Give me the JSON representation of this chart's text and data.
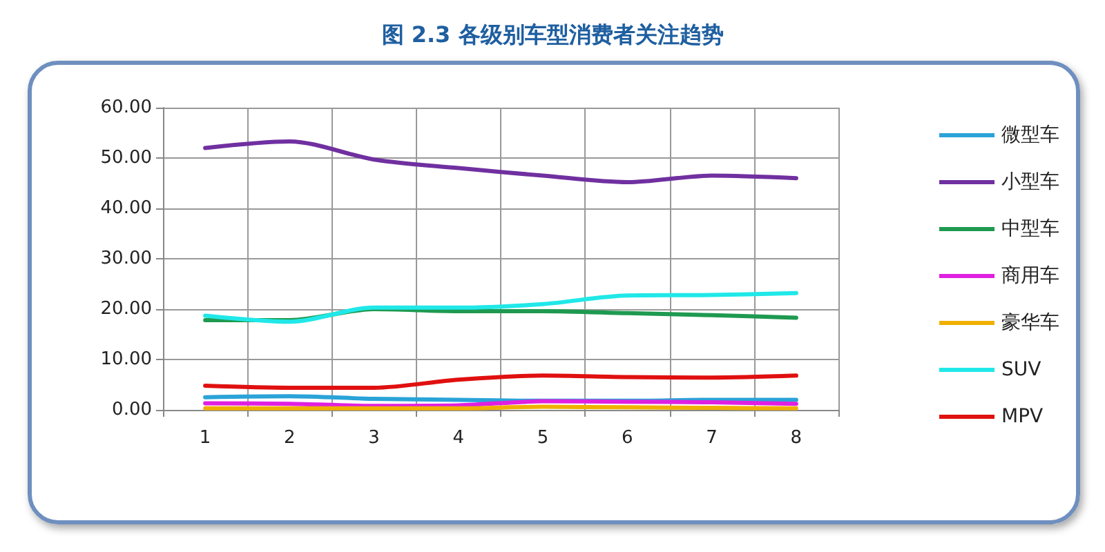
{
  "chart_data": {
    "type": "line",
    "title": "图 2.3 各级别车型消费者关注趋势",
    "categories": [
      "1",
      "2",
      "3",
      "4",
      "5",
      "6",
      "7",
      "8"
    ],
    "series": [
      {
        "name": "微型车",
        "color": "#2aa3d8",
        "values": [
          2.5,
          2.7,
          2.2,
          2.0,
          1.8,
          1.8,
          2.0,
          2.0
        ]
      },
      {
        "name": "小型车",
        "color": "#7030a0",
        "values": [
          52.0,
          53.3,
          49.7,
          48.0,
          46.5,
          45.2,
          46.5,
          46.0
        ]
      },
      {
        "name": "中型车",
        "color": "#1e9a50",
        "values": [
          17.8,
          17.8,
          20.0,
          19.6,
          19.6,
          19.2,
          18.8,
          18.3
        ]
      },
      {
        "name": "商用车",
        "color": "#e020e0",
        "values": [
          1.3,
          1.2,
          0.8,
          0.9,
          1.7,
          1.6,
          1.5,
          1.2
        ]
      },
      {
        "name": "豪华车",
        "color": "#f0b000",
        "values": [
          0.3,
          0.3,
          0.3,
          0.3,
          0.6,
          0.5,
          0.4,
          0.3
        ]
      },
      {
        "name": "SUV",
        "color": "#20e8e8",
        "values": [
          18.7,
          17.5,
          20.3,
          20.3,
          21.0,
          22.7,
          22.8,
          23.2
        ]
      },
      {
        "name": "MPV",
        "color": "#e01010",
        "values": [
          4.8,
          4.4,
          4.4,
          6.0,
          6.8,
          6.5,
          6.4,
          6.8
        ]
      }
    ],
    "ylim": [
      0,
      60
    ],
    "yticks": [
      {
        "value": 0,
        "label": "0.00"
      },
      {
        "value": 10,
        "label": "10.00"
      },
      {
        "value": 20,
        "label": "20.00"
      },
      {
        "value": 30,
        "label": "30.00"
      },
      {
        "value": 40,
        "label": "40.00"
      },
      {
        "value": 50,
        "label": "50.00"
      },
      {
        "value": 60,
        "label": "60.00"
      }
    ],
    "grid": true,
    "legend": "right",
    "marker": "none",
    "line_style": "solid"
  }
}
